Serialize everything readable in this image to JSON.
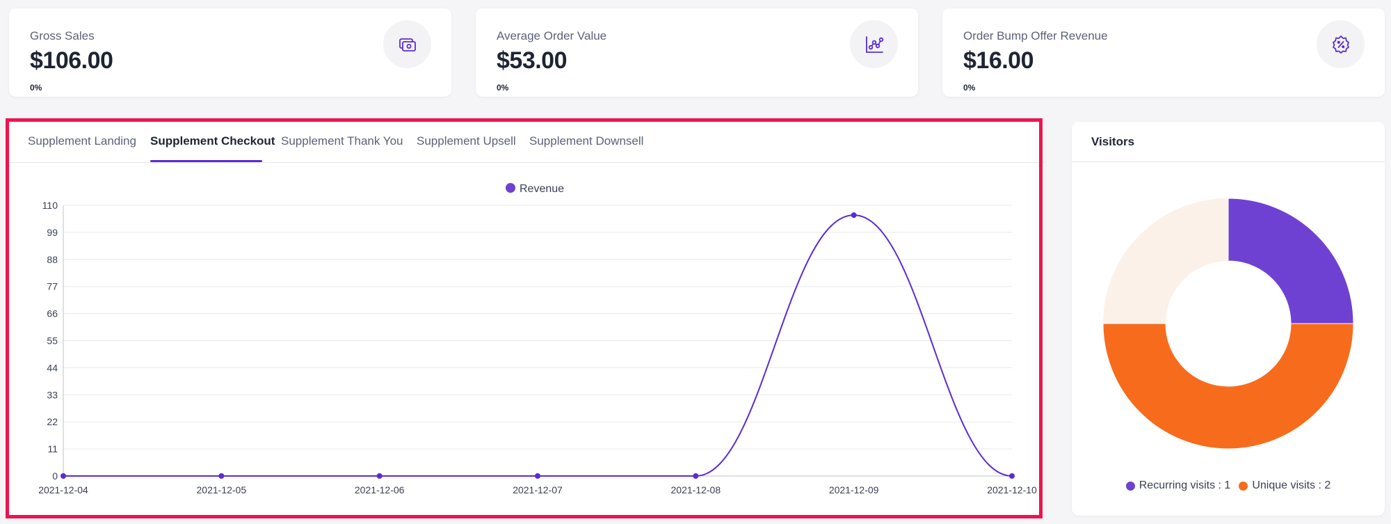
{
  "stats": [
    {
      "label": "Gross Sales",
      "value": "$106.00",
      "change": "0%",
      "icon": "money-icon"
    },
    {
      "label": "Average Order Value",
      "value": "$53.00",
      "change": "0%",
      "icon": "chart-points-icon"
    },
    {
      "label": "Order Bump Offer Revenue",
      "value": "$16.00",
      "change": "0%",
      "icon": "discount-badge-icon"
    }
  ],
  "tabs": [
    {
      "label": "Supplement Landing",
      "active": false
    },
    {
      "label": "Supplement Checkout",
      "active": true
    },
    {
      "label": "Supplement Thank You",
      "active": false
    },
    {
      "label": "Supplement Upsell",
      "active": false
    },
    {
      "label": "Supplement Downsell",
      "active": false
    }
  ],
  "chart_data": {
    "type": "line",
    "x": [
      "2021-12-04",
      "2021-12-05",
      "2021-12-06",
      "2021-12-07",
      "2021-12-08",
      "2021-12-09",
      "2021-12-10"
    ],
    "series": [
      {
        "name": "Revenue",
        "values": [
          0,
          0,
          0,
          0,
          0,
          106,
          0
        ],
        "color": "#5b2bd6"
      }
    ],
    "yticks": [
      0,
      11,
      22,
      33,
      44,
      55,
      66,
      77,
      88,
      99,
      110
    ],
    "ylim": [
      0,
      110
    ],
    "legend": "top-center",
    "grid": true,
    "curve": "smooth"
  },
  "visitors": {
    "title": "Visitors",
    "chart_data": {
      "type": "pie",
      "labels": [
        "Recurring visits",
        "Unique visits"
      ],
      "values": [
        1,
        2
      ],
      "colors": [
        "#6e41d3",
        "#f76b1c"
      ],
      "remainder_color": "#fcf1e9",
      "legend": "bottom"
    },
    "legend": [
      {
        "text": "Recurring visits : 1",
        "color": "#6e41d3"
      },
      {
        "text": "Unique visits : 2",
        "color": "#f76b1c"
      }
    ]
  },
  "colors": {
    "accent": "#5b2bd6",
    "highlight": "#f0134d"
  }
}
